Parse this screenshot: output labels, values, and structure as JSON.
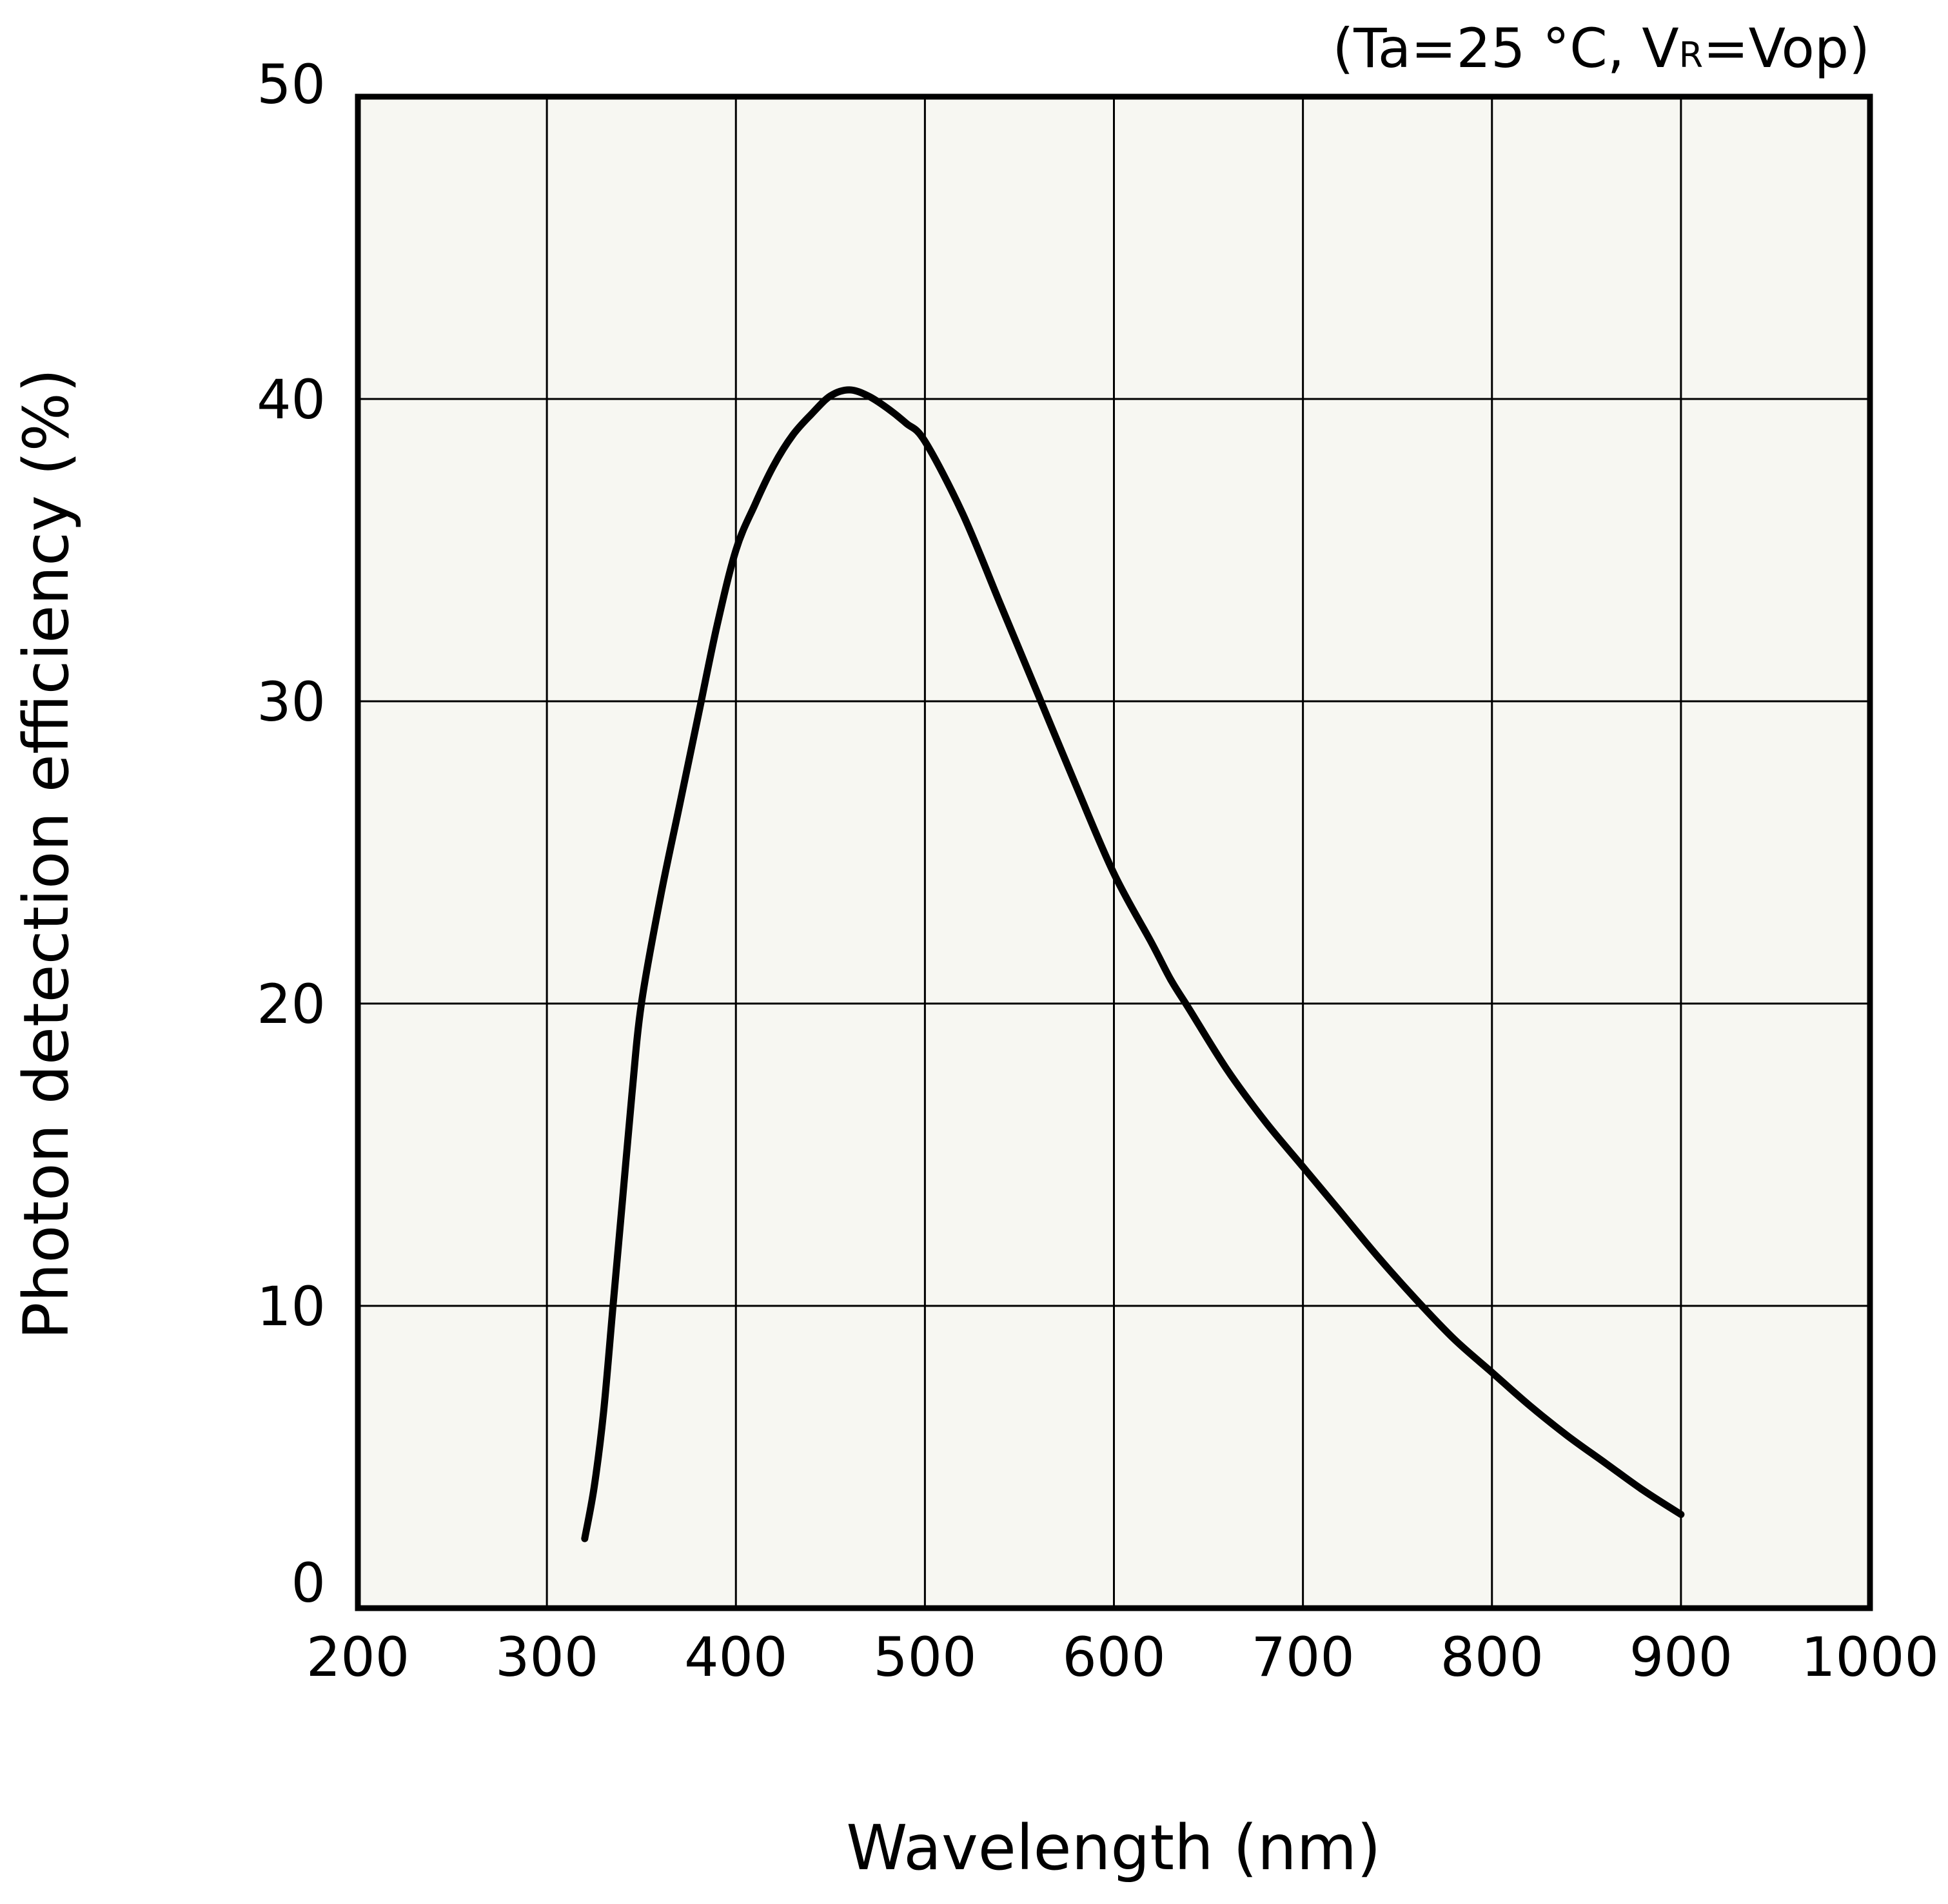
{
  "chart_data": {
    "type": "line",
    "title": "",
    "condition": {
      "prefix": "(Ta=25 °C, V",
      "subscript": "R",
      "suffix": "=Vop)"
    },
    "xlabel": "Wavelength (nm)",
    "ylabel": "Photon detection efficiency (%)",
    "xlim": [
      200,
      1000
    ],
    "ylim": [
      0,
      50
    ],
    "xticks": [
      "200",
      "300",
      "400",
      "500",
      "600",
      "700",
      "800",
      "900",
      "1000"
    ],
    "yticks": [
      "0",
      "10",
      "20",
      "30",
      "40",
      "50"
    ],
    "grid": true,
    "colors": {
      "plot_background": "#f7f7f2",
      "grid": "#000000",
      "line": "#000000"
    },
    "series": [
      {
        "name": "Photon detection efficiency",
        "x": [
          320,
          325,
          330,
          335,
          340,
          345,
          350,
          360,
          370,
          380,
          390,
          400,
          410,
          420,
          430,
          440,
          450,
          460,
          470,
          480,
          490,
          500,
          520,
          540,
          560,
          580,
          600,
          620,
          630,
          640,
          660,
          680,
          700,
          720,
          740,
          760,
          780,
          800,
          820,
          840,
          860,
          880,
          900
        ],
        "y": [
          2.3,
          4.0,
          6.5,
          10.0,
          13.5,
          17.0,
          20.0,
          23.5,
          26.5,
          29.5,
          32.5,
          35.0,
          36.5,
          37.8,
          38.8,
          39.5,
          40.1,
          40.3,
          40.1,
          39.7,
          39.2,
          38.6,
          36.2,
          33.2,
          30.2,
          27.2,
          24.3,
          22.0,
          20.8,
          19.8,
          17.8,
          16.1,
          14.6,
          13.1,
          11.6,
          10.2,
          8.9,
          7.8,
          6.7,
          5.7,
          4.8,
          3.9,
          3.1
        ]
      }
    ]
  }
}
